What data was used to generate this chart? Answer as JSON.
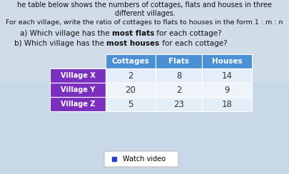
{
  "title_line1": "he table below shows the numbers of cottages, flats and houses in three",
  "title_line2": "different villages.",
  "subtitle1": "For each village, write the ratio of cottages to flats to houses in the form 1 : m : n",
  "qa_prefix": "a) Which village has the ",
  "qa_bold": "most flats",
  "qa_suffix": " for each cottage?",
  "qb_prefix": "b) Which village has the ",
  "qb_bold": "most houses",
  "qb_suffix": " for each cottage?",
  "col_headers": [
    "Cottages",
    "Flats",
    "Houses"
  ],
  "row_labels": [
    "Village X",
    "Village Y",
    "Village Z"
  ],
  "table_data": [
    [
      2,
      8,
      14
    ],
    [
      20,
      2,
      9
    ],
    [
      5,
      23,
      18
    ]
  ],
  "header_bg": "#4B8FD5",
  "row_label_bg": "#7B2FBE",
  "header_text_color": "#FFFFFF",
  "row_label_text_color": "#FFFFFF",
  "data_bg_light": "#E8F0F8",
  "data_bg_white": "#F5F8FC",
  "data_text_color": "#333333",
  "watch_video_text": "Watch video",
  "watch_video_icon_color": "#2244CC",
  "background_color": "#C8D8E8",
  "text_color": "#111111"
}
